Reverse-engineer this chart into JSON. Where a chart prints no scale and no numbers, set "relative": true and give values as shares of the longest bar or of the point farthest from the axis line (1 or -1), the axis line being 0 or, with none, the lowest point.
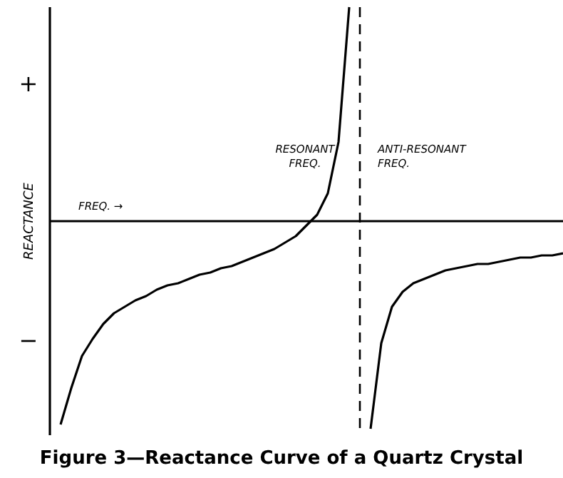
{
  "chart_data": {
    "type": "line",
    "title": "Figure 3—Reactance Curve of a Quartz Crystal",
    "ylabel": "REACTANCE",
    "relative": true,
    "line_style": "solid",
    "categories": [
      null,
      null,
      null,
      null,
      null,
      null,
      null,
      null,
      null,
      null,
      null,
      null,
      null,
      null,
      null,
      null,
      null,
      null,
      null,
      null,
      null,
      null,
      null,
      null,
      null,
      null,
      null,
      null,
      null,
      null,
      null,
      null,
      null,
      null,
      null,
      null,
      null,
      null,
      null,
      null,
      null,
      null,
      null,
      null,
      null,
      null,
      null,
      null,
      null
    ],
    "series": [
      {
        "color": "#000000",
        "values": [
          null,
          -0.95,
          -0.78,
          -0.63,
          -0.55,
          -0.48,
          -0.43,
          -0.4,
          -0.37,
          -0.35,
          -0.32,
          -0.3,
          -0.29,
          -0.27,
          -0.25,
          -0.24,
          -0.22,
          -0.21,
          -0.19,
          -0.17,
          -0.15,
          -0.13,
          -0.1,
          -0.07,
          -0.02,
          0.03,
          0.13,
          0.37,
          1.0,
          null,
          null,
          null,
          null,
          null,
          null,
          null,
          null,
          null,
          null,
          null,
          null,
          null,
          null,
          null,
          null,
          null,
          null,
          null,
          null
        ]
      },
      {
        "color": "#000000",
        "values": [
          null,
          null,
          null,
          null,
          null,
          null,
          null,
          null,
          null,
          null,
          null,
          null,
          null,
          null,
          null,
          null,
          null,
          null,
          null,
          null,
          null,
          null,
          null,
          null,
          null,
          null,
          null,
          null,
          null,
          null,
          -0.97,
          -0.57,
          -0.4,
          -0.33,
          -0.29,
          -0.27,
          -0.25,
          -0.23,
          -0.22,
          -0.21,
          -0.2,
          -0.2,
          -0.19,
          -0.18,
          -0.17,
          -0.17,
          -0.16,
          -0.16,
          -0.15
        ]
      }
    ],
    "annotations": [
      "RESONANT FREQ.",
      "FREQ. →",
      "+",
      "−",
      "ANTI-RESONANT FREQ."
    ]
  }
}
